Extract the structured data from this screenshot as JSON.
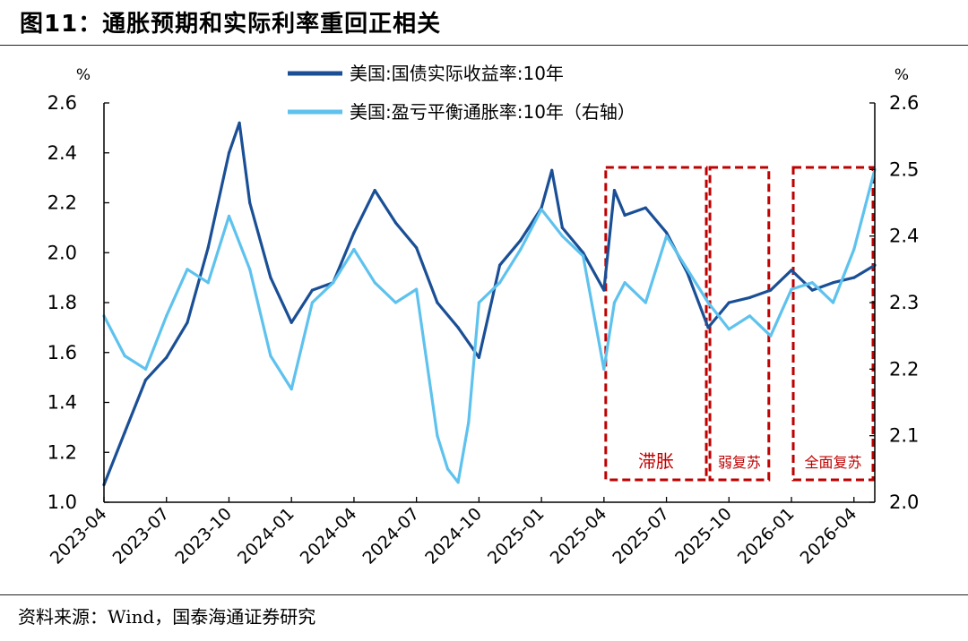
{
  "figure": {
    "title": "图11：通胀预期和实际利率重回正相关",
    "source": "资料来源：Wind，国泰海通证券研究"
  },
  "chart_data": {
    "type": "line",
    "left_axis": {
      "unit": "%",
      "ylim": [
        1.0,
        2.6
      ],
      "ticks": [
        "1.0",
        "1.2",
        "1.4",
        "1.6",
        "1.8",
        "2.0",
        "2.2",
        "2.4",
        "2.6"
      ]
    },
    "right_axis": {
      "unit": "%",
      "ylim": [
        2.0,
        2.6
      ],
      "ticks": [
        "2.0",
        "2.1",
        "2.2",
        "2.3",
        "2.4",
        "2.5",
        "2.6"
      ]
    },
    "x_ticks": [
      "2023-04",
      "2023-07",
      "2023-10",
      "2024-01",
      "2024-04",
      "2024-07",
      "2024-10",
      "2025-01",
      "2025-04",
      "2025-07",
      "2025-10",
      "2026-01",
      "2026-04"
    ],
    "x_range": [
      "2023-04",
      "2026-05"
    ],
    "grid": false,
    "legend_position": "top-center",
    "series": [
      {
        "name": "美国:国债实际收益率:10年",
        "axis": "left",
        "color": "#1a4f96",
        "x": [
          "2023-04",
          "2023-05",
          "2023-06",
          "2023-07",
          "2023-08",
          "2023-09",
          "2023-10",
          "2023-10",
          "2023-11",
          "2023-12",
          "2024-01",
          "2024-02",
          "2024-03",
          "2024-04",
          "2024-05",
          "2024-06",
          "2024-07",
          "2024-08",
          "2024-09",
          "2024-10",
          "2024-11",
          "2024-12",
          "2025-01",
          "2025-01",
          "2025-02",
          "2025-03",
          "2025-04",
          "2025-04",
          "2025-05",
          "2025-06",
          "2025-07",
          "2025-08",
          "2025-09",
          "2025-10",
          "2025-11",
          "2025-12",
          "2026-01",
          "2026-02",
          "2026-03",
          "2026-04",
          "2026-05"
        ],
        "values": [
          1.07,
          1.28,
          1.49,
          1.58,
          1.72,
          2.02,
          2.4,
          2.52,
          2.2,
          1.9,
          1.72,
          1.85,
          1.88,
          2.08,
          2.25,
          2.12,
          2.02,
          1.8,
          1.7,
          1.58,
          1.95,
          2.05,
          2.18,
          2.33,
          2.1,
          2.0,
          1.85,
          2.25,
          2.15,
          2.18,
          2.08,
          1.92,
          1.7,
          1.8,
          1.82,
          1.85,
          1.93,
          1.85,
          1.88,
          1.9,
          1.95
        ]
      },
      {
        "name": "美国:盈亏平衡通胀率:10年（右轴）",
        "axis": "right",
        "color": "#5ec2ee",
        "x": [
          "2023-04",
          "2023-05",
          "2023-06",
          "2023-07",
          "2023-08",
          "2023-09",
          "2023-10",
          "2023-11",
          "2023-12",
          "2024-01",
          "2024-02",
          "2024-03",
          "2024-04",
          "2024-05",
          "2024-06",
          "2024-07",
          "2024-08",
          "2024-08",
          "2024-09",
          "2024-09",
          "2024-10",
          "2024-11",
          "2024-12",
          "2025-01",
          "2025-02",
          "2025-03",
          "2025-04",
          "2025-04",
          "2025-05",
          "2025-06",
          "2025-07",
          "2025-08",
          "2025-09",
          "2025-10",
          "2025-11",
          "2025-12",
          "2026-01",
          "2026-02",
          "2026-03",
          "2026-04",
          "2026-05"
        ],
        "values": [
          2.28,
          2.22,
          2.2,
          2.28,
          2.35,
          2.33,
          2.43,
          2.35,
          2.22,
          2.17,
          2.3,
          2.33,
          2.38,
          2.33,
          2.3,
          2.32,
          2.1,
          2.05,
          2.03,
          2.12,
          2.3,
          2.33,
          2.38,
          2.44,
          2.4,
          2.37,
          2.2,
          2.3,
          2.33,
          2.3,
          2.4,
          2.35,
          2.3,
          2.26,
          2.28,
          2.25,
          2.32,
          2.33,
          2.3,
          2.38,
          2.5
        ]
      }
    ],
    "annotations": [
      {
        "label": "滞胀",
        "x_start": "2025-04",
        "x_end": "2025-09",
        "color": "#c00000"
      },
      {
        "label": "弱复苏",
        "x_start": "2025-09",
        "x_end": "2025-12",
        "color": "#c00000"
      },
      {
        "label": "全面复苏",
        "x_start": "2026-01",
        "x_end": "2026-05",
        "color": "#c00000"
      }
    ]
  }
}
